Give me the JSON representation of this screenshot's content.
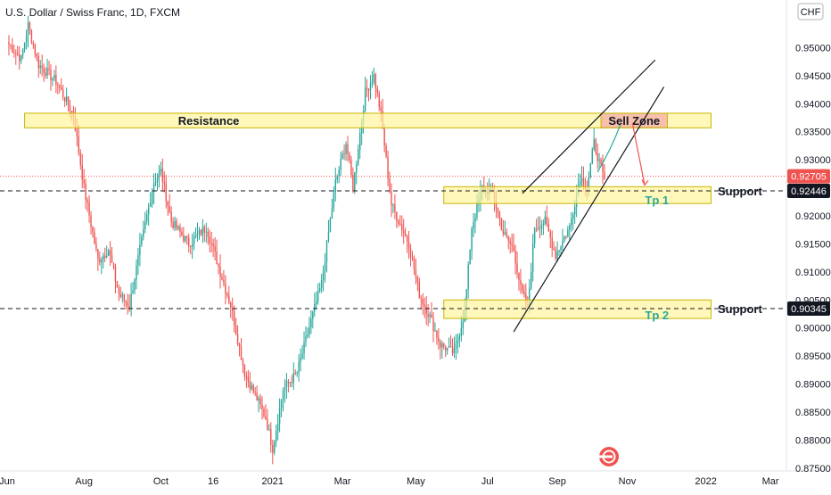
{
  "header": {
    "symbol_title": "U.S. Dollar / Swiss Franc, 1D, FXCM",
    "currency_button": "CHF"
  },
  "colors": {
    "up": "#26a69a",
    "down": "#ef5350",
    "zone_fill": "#fff59d",
    "zone_stroke": "#c8b400",
    "sell_zone_fill": "#f4a6a6",
    "current_price_tag": "#ef5350",
    "level_tag": "#131722",
    "logo": "#ef5350"
  },
  "chart_data": {
    "type": "candlestick",
    "title": "U.S. Dollar / Swiss Franc, 1D, FXCM",
    "ylim": [
      0.8745,
      0.9585
    ],
    "y_ticks": [
      "0.95000",
      "0.94500",
      "0.94000",
      "0.93500",
      "0.93000",
      "0.92000",
      "0.91500",
      "0.91000",
      "0.90500",
      "0.90000",
      "0.89500",
      "0.89000",
      "0.88500",
      "0.88000",
      "0.87500"
    ],
    "y_ticks_values": [
      0.95,
      0.945,
      0.94,
      0.935,
      0.93,
      0.92,
      0.915,
      0.91,
      0.905,
      0.9,
      0.895,
      0.89,
      0.885,
      0.88,
      0.875
    ],
    "x_ticks": [
      "Jun",
      "Aug",
      "Oct",
      "16",
      "2021",
      "Mar",
      "May",
      "Jul",
      "Sep",
      "Nov",
      "2022",
      "Mar"
    ],
    "x_ticks_bar": [
      0,
      44,
      88,
      118,
      152,
      192,
      234,
      275,
      315,
      355,
      400,
      437
    ],
    "num_bars": 440,
    "anchors": [
      [
        0,
        0.951
      ],
      [
        8,
        0.948
      ],
      [
        12,
        0.954
      ],
      [
        18,
        0.947
      ],
      [
        28,
        0.944
      ],
      [
        38,
        0.938
      ],
      [
        44,
        0.925
      ],
      [
        52,
        0.912
      ],
      [
        58,
        0.914
      ],
      [
        64,
        0.906
      ],
      [
        70,
        0.904
      ],
      [
        76,
        0.914
      ],
      [
        84,
        0.926
      ],
      [
        88,
        0.928
      ],
      [
        94,
        0.919
      ],
      [
        104,
        0.915
      ],
      [
        114,
        0.918
      ],
      [
        120,
        0.912
      ],
      [
        128,
        0.904
      ],
      [
        136,
        0.892
      ],
      [
        142,
        0.888
      ],
      [
        148,
        0.884
      ],
      [
        152,
        0.8785
      ],
      [
        158,
        0.889
      ],
      [
        166,
        0.892
      ],
      [
        172,
        0.899
      ],
      [
        180,
        0.908
      ],
      [
        188,
        0.926
      ],
      [
        194,
        0.933
      ],
      [
        198,
        0.925
      ],
      [
        205,
        0.942
      ],
      [
        210,
        0.945
      ],
      [
        214,
        0.938
      ],
      [
        220,
        0.922
      ],
      [
        230,
        0.915
      ],
      [
        236,
        0.906
      ],
      [
        242,
        0.902
      ],
      [
        248,
        0.897
      ],
      [
        256,
        0.8955
      ],
      [
        262,
        0.903
      ],
      [
        266,
        0.918
      ],
      [
        272,
        0.925
      ],
      [
        278,
        0.924
      ],
      [
        284,
        0.917
      ],
      [
        290,
        0.914
      ],
      [
        294,
        0.907
      ],
      [
        298,
        0.9035
      ],
      [
        302,
        0.918
      ],
      [
        308,
        0.919
      ],
      [
        314,
        0.913
      ],
      [
        322,
        0.918
      ],
      [
        328,
        0.927
      ],
      [
        332,
        0.925
      ],
      [
        336,
        0.933
      ],
      [
        342,
        0.926
      ]
    ],
    "last_bar": 342,
    "annotations": {
      "resistance": {
        "label": "Resistance",
        "bar_start": 10,
        "bar_end": 403,
        "y_low": 0.9357,
        "y_high": 0.9383
      },
      "sell_zone": {
        "label": "Sell Zone",
        "bar_start": 340,
        "bar_end": 378,
        "y_low": 0.9357,
        "y_high": 0.9383
      },
      "support_zone_1": {
        "label": "Tp 1",
        "bar_start": 250,
        "bar_end": 403,
        "y_low": 0.9222,
        "y_high": 0.9252
      },
      "support_zone_2": {
        "label": "Tp 2",
        "bar_start": 250,
        "bar_end": 403,
        "y_low": 0.9017,
        "y_high": 0.905
      },
      "support_label_1": "Support",
      "support_label_2": "Support",
      "support_level_1": 0.92446,
      "support_level_2": 0.90345,
      "current_price": 0.92705,
      "channel_upper": [
        [
          295,
          0.924
        ],
        [
          371,
          0.9478
        ]
      ],
      "channel_lower": [
        [
          290,
          0.8993
        ],
        [
          376,
          0.943
        ]
      ]
    },
    "price_tags": [
      "0.92705",
      "0.92446",
      "0.90345"
    ]
  }
}
